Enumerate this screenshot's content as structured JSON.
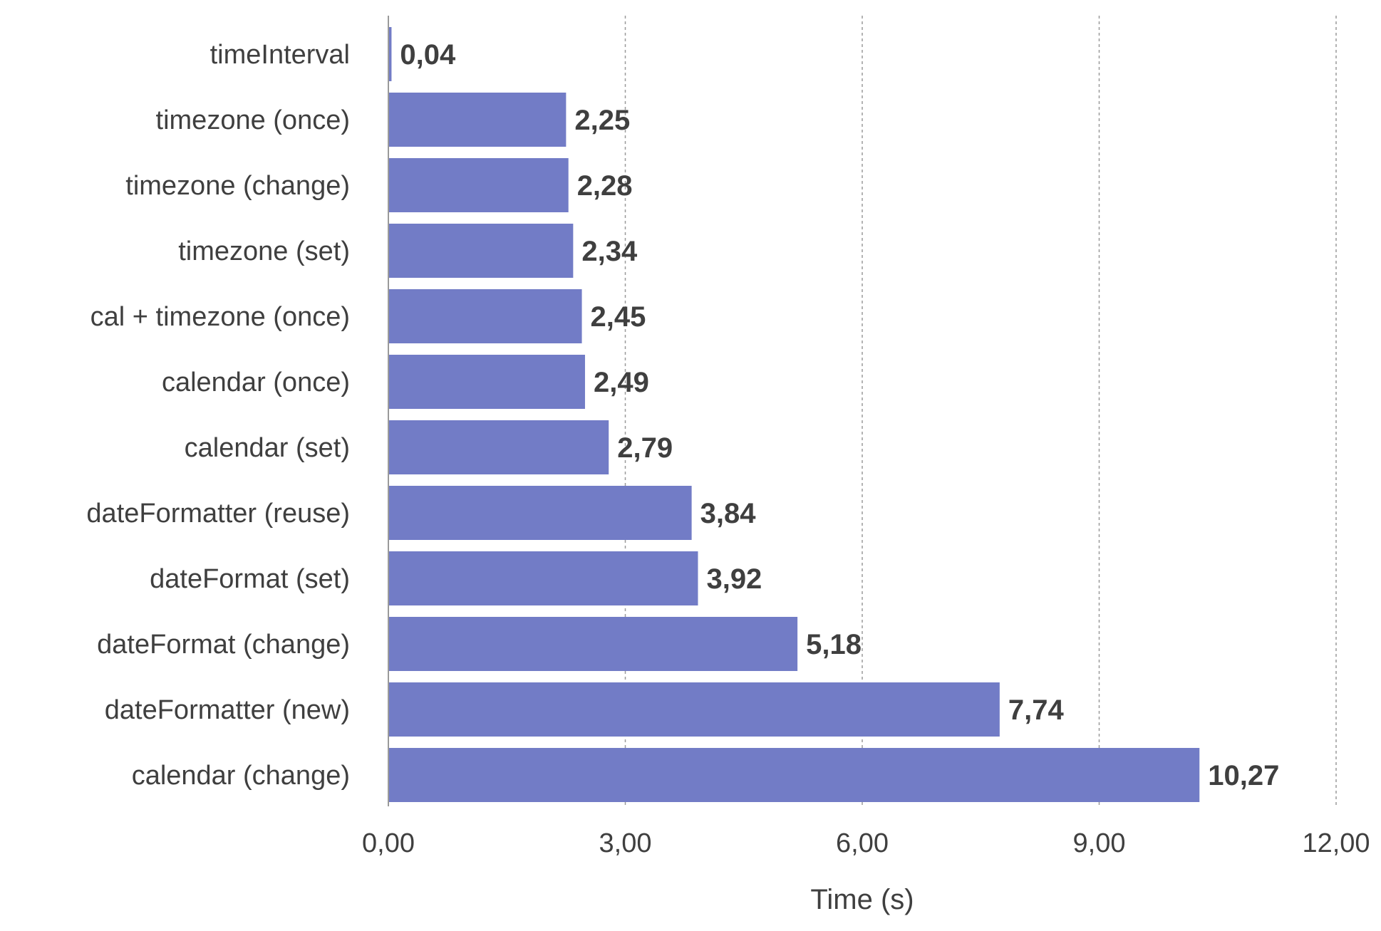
{
  "colors": {
    "bar": "#727cc6",
    "text": "#3f3f3f",
    "grid": "#9a9a9a",
    "axis": "#9a9a9a"
  },
  "chart_data": {
    "type": "bar",
    "orientation": "horizontal",
    "categories": [
      "timeInterval",
      "timezone (once)",
      "timezone (change)",
      "timezone (set)",
      "cal + timezone (once)",
      "calendar (once)",
      "calendar (set)",
      "dateFormatter (reuse)",
      "dateFormat (set)",
      "dateFormat (change)",
      "dateFormatter (new)",
      "calendar (change)"
    ],
    "values": [
      0.04,
      2.25,
      2.28,
      2.34,
      2.45,
      2.49,
      2.79,
      3.84,
      3.92,
      5.18,
      7.74,
      10.27
    ],
    "value_labels": [
      "0,04",
      "2,25",
      "2,28",
      "2,34",
      "2,45",
      "2,49",
      "2,79",
      "3,84",
      "3,92",
      "5,18",
      "7,74",
      "10,27"
    ],
    "xticks": [
      0,
      3,
      6,
      9,
      12
    ],
    "xtick_labels": [
      "0,00",
      "3,00",
      "6,00",
      "9,00",
      "12,00"
    ],
    "xlim": [
      0,
      12
    ],
    "xlabel": "Time (s)",
    "ylabel": "",
    "title": "",
    "grid": "vertical dashed",
    "legend": "none"
  }
}
